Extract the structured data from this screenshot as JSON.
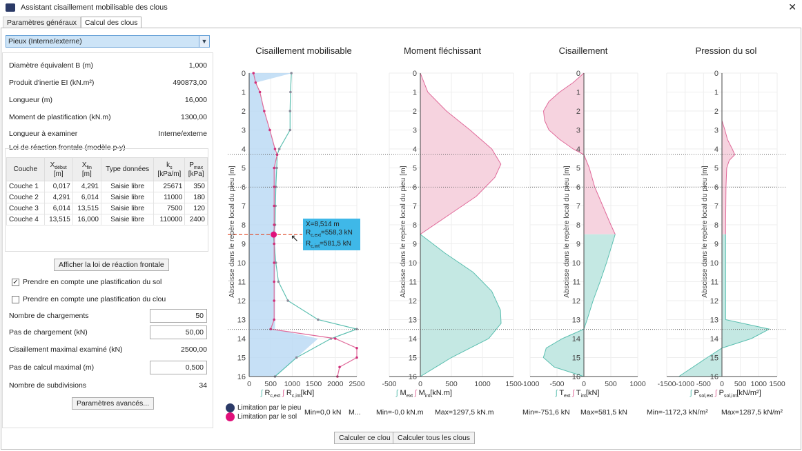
{
  "window": {
    "title": "Assistant cisaillement mobilisable des clous",
    "close": "✕"
  },
  "tabs": [
    {
      "label": "Paramètres généraux"
    },
    {
      "label": "Calcul des clous"
    }
  ],
  "selector": {
    "value": "Pieux (Interne/externe)"
  },
  "params": [
    {
      "label": "Diamètre équivalent B (m)",
      "value": "1,000"
    },
    {
      "label": "Produit d'inertie EI (kN.m²)",
      "value": "490873,00"
    },
    {
      "label": "Longueur (m)",
      "value": "16,000"
    },
    {
      "label": "Moment de plastification (kN.m)",
      "value": "1300,00"
    },
    {
      "label": "Longueur à examiner",
      "value": "Interne/externe"
    }
  ],
  "reaction_title": "Loi de réaction frontale (modèle p-y)",
  "table": {
    "headers": [
      "Couche",
      "X",
      "[m]",
      "X",
      "[m]",
      "Type données",
      "k",
      "[kPa/m]",
      "P",
      "[kPa]"
    ],
    "header_subs": [
      "début",
      "fin",
      "s",
      "max"
    ],
    "rows": [
      [
        "Couche 1",
        "0,017",
        "4,291",
        "Saisie libre",
        "25671",
        "350"
      ],
      [
        "Couche 2",
        "4,291",
        "6,014",
        "Saisie libre",
        "11000",
        "180"
      ],
      [
        "Couche 3",
        "6,014",
        "13,515",
        "Saisie libre",
        "7500",
        "120"
      ],
      [
        "Couche 4",
        "13,515",
        "16,000",
        "Saisie libre",
        "110000",
        "2400"
      ]
    ]
  },
  "show_law_button": "Afficher la loi de réaction frontale",
  "checks": [
    {
      "label": "Prendre en compte une plastification du sol",
      "checked": true
    },
    {
      "label": "Prendre en compte une plastification du clou",
      "checked": false
    }
  ],
  "fields": [
    {
      "label": "Nombre de chargements",
      "value": "50"
    },
    {
      "label": "Pas de chargement (kN)",
      "value": "50,00"
    },
    {
      "label": "Cisaillement maximal examiné (kN)",
      "value": "2500,00"
    },
    {
      "label": "Pas de calcul maximal (m)",
      "value": "0,500"
    },
    {
      "label": "Nombre de subdivisions",
      "value": "34"
    }
  ],
  "advanced_button": "Paramètres avancés...",
  "calc_button": "Calculer ce clou",
  "calc_all_button": "Calculer tous les clous",
  "ylabel": "Abscisse dans le repère local du pieu [m]",
  "legend_limits": [
    {
      "label": "Limitation par le pieu",
      "color": "#2b3a67"
    },
    {
      "label": "Limitation par le sol",
      "color": "#e0107a"
    }
  ],
  "tooltip": {
    "x": "X=8,514 m",
    "ext": "=558,3 kN",
    "int": "=581,5 kN",
    "ext_sym": "R",
    "ext_sub": "c,ext",
    "int_sym": "R",
    "int_sub": "c,int"
  },
  "colors": {
    "ext": "#5bbfb0",
    "int": "#e06a9a",
    "blue": "#b8d8f4",
    "pinkfill": "#f6d3df",
    "tealfill": "#c4e8e3"
  },
  "chart_data": [
    {
      "type": "line",
      "title": "Cisaillement mobilisable",
      "xlim": [
        0,
        2500
      ],
      "xticks": [
        0,
        500,
        1000,
        1500,
        2000,
        2500
      ],
      "ylim": [
        0,
        16
      ],
      "legend": [
        "R",
        "R"
      ],
      "legend_subs": [
        "c,ext",
        "c,int"
      ],
      "unit": "[kN]",
      "min": "Min=0,0 kN",
      "max": "M...",
      "series": [
        {
          "name": "Rc,ext",
          "y": [
            0,
            1,
            2,
            3,
            4,
            4.3,
            5,
            6,
            7,
            8,
            8.5,
            9,
            10,
            11,
            12,
            13,
            13.5,
            14,
            15,
            16
          ],
          "x": [
            980,
            960,
            950,
            950,
            700,
            650,
            640,
            620,
            610,
            600,
            558,
            580,
            620,
            680,
            900,
            1600,
            2500,
            1900,
            1100,
            600
          ]
        },
        {
          "name": "Rc,int",
          "y": [
            0,
            0.5,
            1,
            2,
            3,
            4,
            4.3,
            5,
            6,
            7,
            8,
            8.5,
            9,
            10,
            11,
            12,
            13,
            13.5,
            14,
            14.5,
            15,
            15.5,
            16
          ],
          "x": [
            100,
            150,
            250,
            350,
            480,
            600,
            650,
            580,
            580,
            580,
            580,
            581,
            580,
            580,
            580,
            580,
            580,
            500,
            2000,
            2500,
            2500,
            2100,
            2050
          ]
        },
        {
          "name": "area",
          "y": [
            0,
            0.5,
            1,
            2,
            3,
            4,
            4.3,
            13.5,
            14,
            15,
            16
          ],
          "x": [
            1000,
            150,
            250,
            350,
            480,
            600,
            620,
            600,
            1600,
            1100,
            600
          ]
        }
      ]
    },
    {
      "type": "area",
      "title": "Moment fléchissant",
      "xlim": [
        -500,
        1500
      ],
      "xticks": [
        -500,
        0,
        500,
        1000,
        1500
      ],
      "ylim": [
        0,
        16
      ],
      "legend": [
        "M",
        "M"
      ],
      "legend_subs": [
        "ext",
        "int"
      ],
      "unit": "[kN.m]",
      "min": "Min=-0,0 kN.m",
      "max": "Max=1297,5 kN.m",
      "series": [
        {
          "name": "Mint",
          "y": [
            0,
            1,
            2,
            3,
            4,
            4.8,
            5.5,
            6.5,
            7.5,
            8.5
          ],
          "x": [
            0,
            120,
            420,
            800,
            1150,
            1297,
            1200,
            900,
            450,
            0
          ]
        },
        {
          "name": "Mext",
          "y": [
            8.5,
            9.5,
            10.5,
            11.5,
            12.5,
            13.2,
            14,
            15,
            16
          ],
          "x": [
            0,
            400,
            850,
            1150,
            1290,
            1300,
            1100,
            500,
            0
          ]
        }
      ]
    },
    {
      "type": "area",
      "title": "Cisaillement",
      "xlim": [
        -1000,
        1000
      ],
      "xticks": [
        -1000,
        -500,
        0,
        500,
        1000
      ],
      "ylim": [
        0,
        16
      ],
      "legend": [
        "T",
        "T"
      ],
      "legend_subs": [
        "ext",
        "int"
      ],
      "unit": "[kN]",
      "min": "Min=-751,6 kN",
      "max": "Max=581,5 kN",
      "series": [
        {
          "name": "Tint",
          "y": [
            0,
            0.5,
            1,
            1.5,
            2,
            2.5,
            3,
            3.5,
            4,
            4.3,
            5,
            6,
            7,
            8,
            8.5
          ],
          "x": [
            0,
            -200,
            -450,
            -650,
            -750,
            -730,
            -650,
            -450,
            -200,
            0,
            100,
            200,
            350,
            500,
            581
          ]
        },
        {
          "name": "Text",
          "y": [
            8.5,
            10,
            11,
            12,
            13,
            13.5,
            14,
            14.5,
            15,
            15.5,
            16
          ],
          "x": [
            581,
            420,
            300,
            170,
            60,
            0,
            -400,
            -700,
            -752,
            -550,
            0
          ]
        }
      ]
    },
    {
      "type": "area",
      "title": "Pression du sol",
      "xlim": [
        -1500,
        1500
      ],
      "xticks": [
        -1500,
        -1000,
        -500,
        0,
        500,
        1000,
        1500
      ],
      "ylim": [
        0,
        16
      ],
      "legend": [
        "P",
        "P"
      ],
      "legend_subs": [
        "sol,ext",
        "sol,int"
      ],
      "unit": "[kN/m²]",
      "min": "Min=-1172,3 kN/m²",
      "max": "Max=1287,5 kN/m²",
      "series": [
        {
          "name": "Psol,int",
          "y": [
            0,
            2,
            2.5,
            3,
            3.5,
            4,
            4.3,
            4.6,
            5,
            6,
            8,
            8.5
          ],
          "x": [
            0,
            0,
            0,
            80,
            150,
            280,
            350,
            200,
            130,
            110,
            100,
            100
          ]
        },
        {
          "name": "Psol,ext",
          "y": [
            8.5,
            13,
            13.5,
            14,
            14.5,
            15,
            16
          ],
          "x": [
            100,
            100,
            1287,
            800,
            0,
            -400,
            -1172
          ]
        }
      ]
    }
  ]
}
